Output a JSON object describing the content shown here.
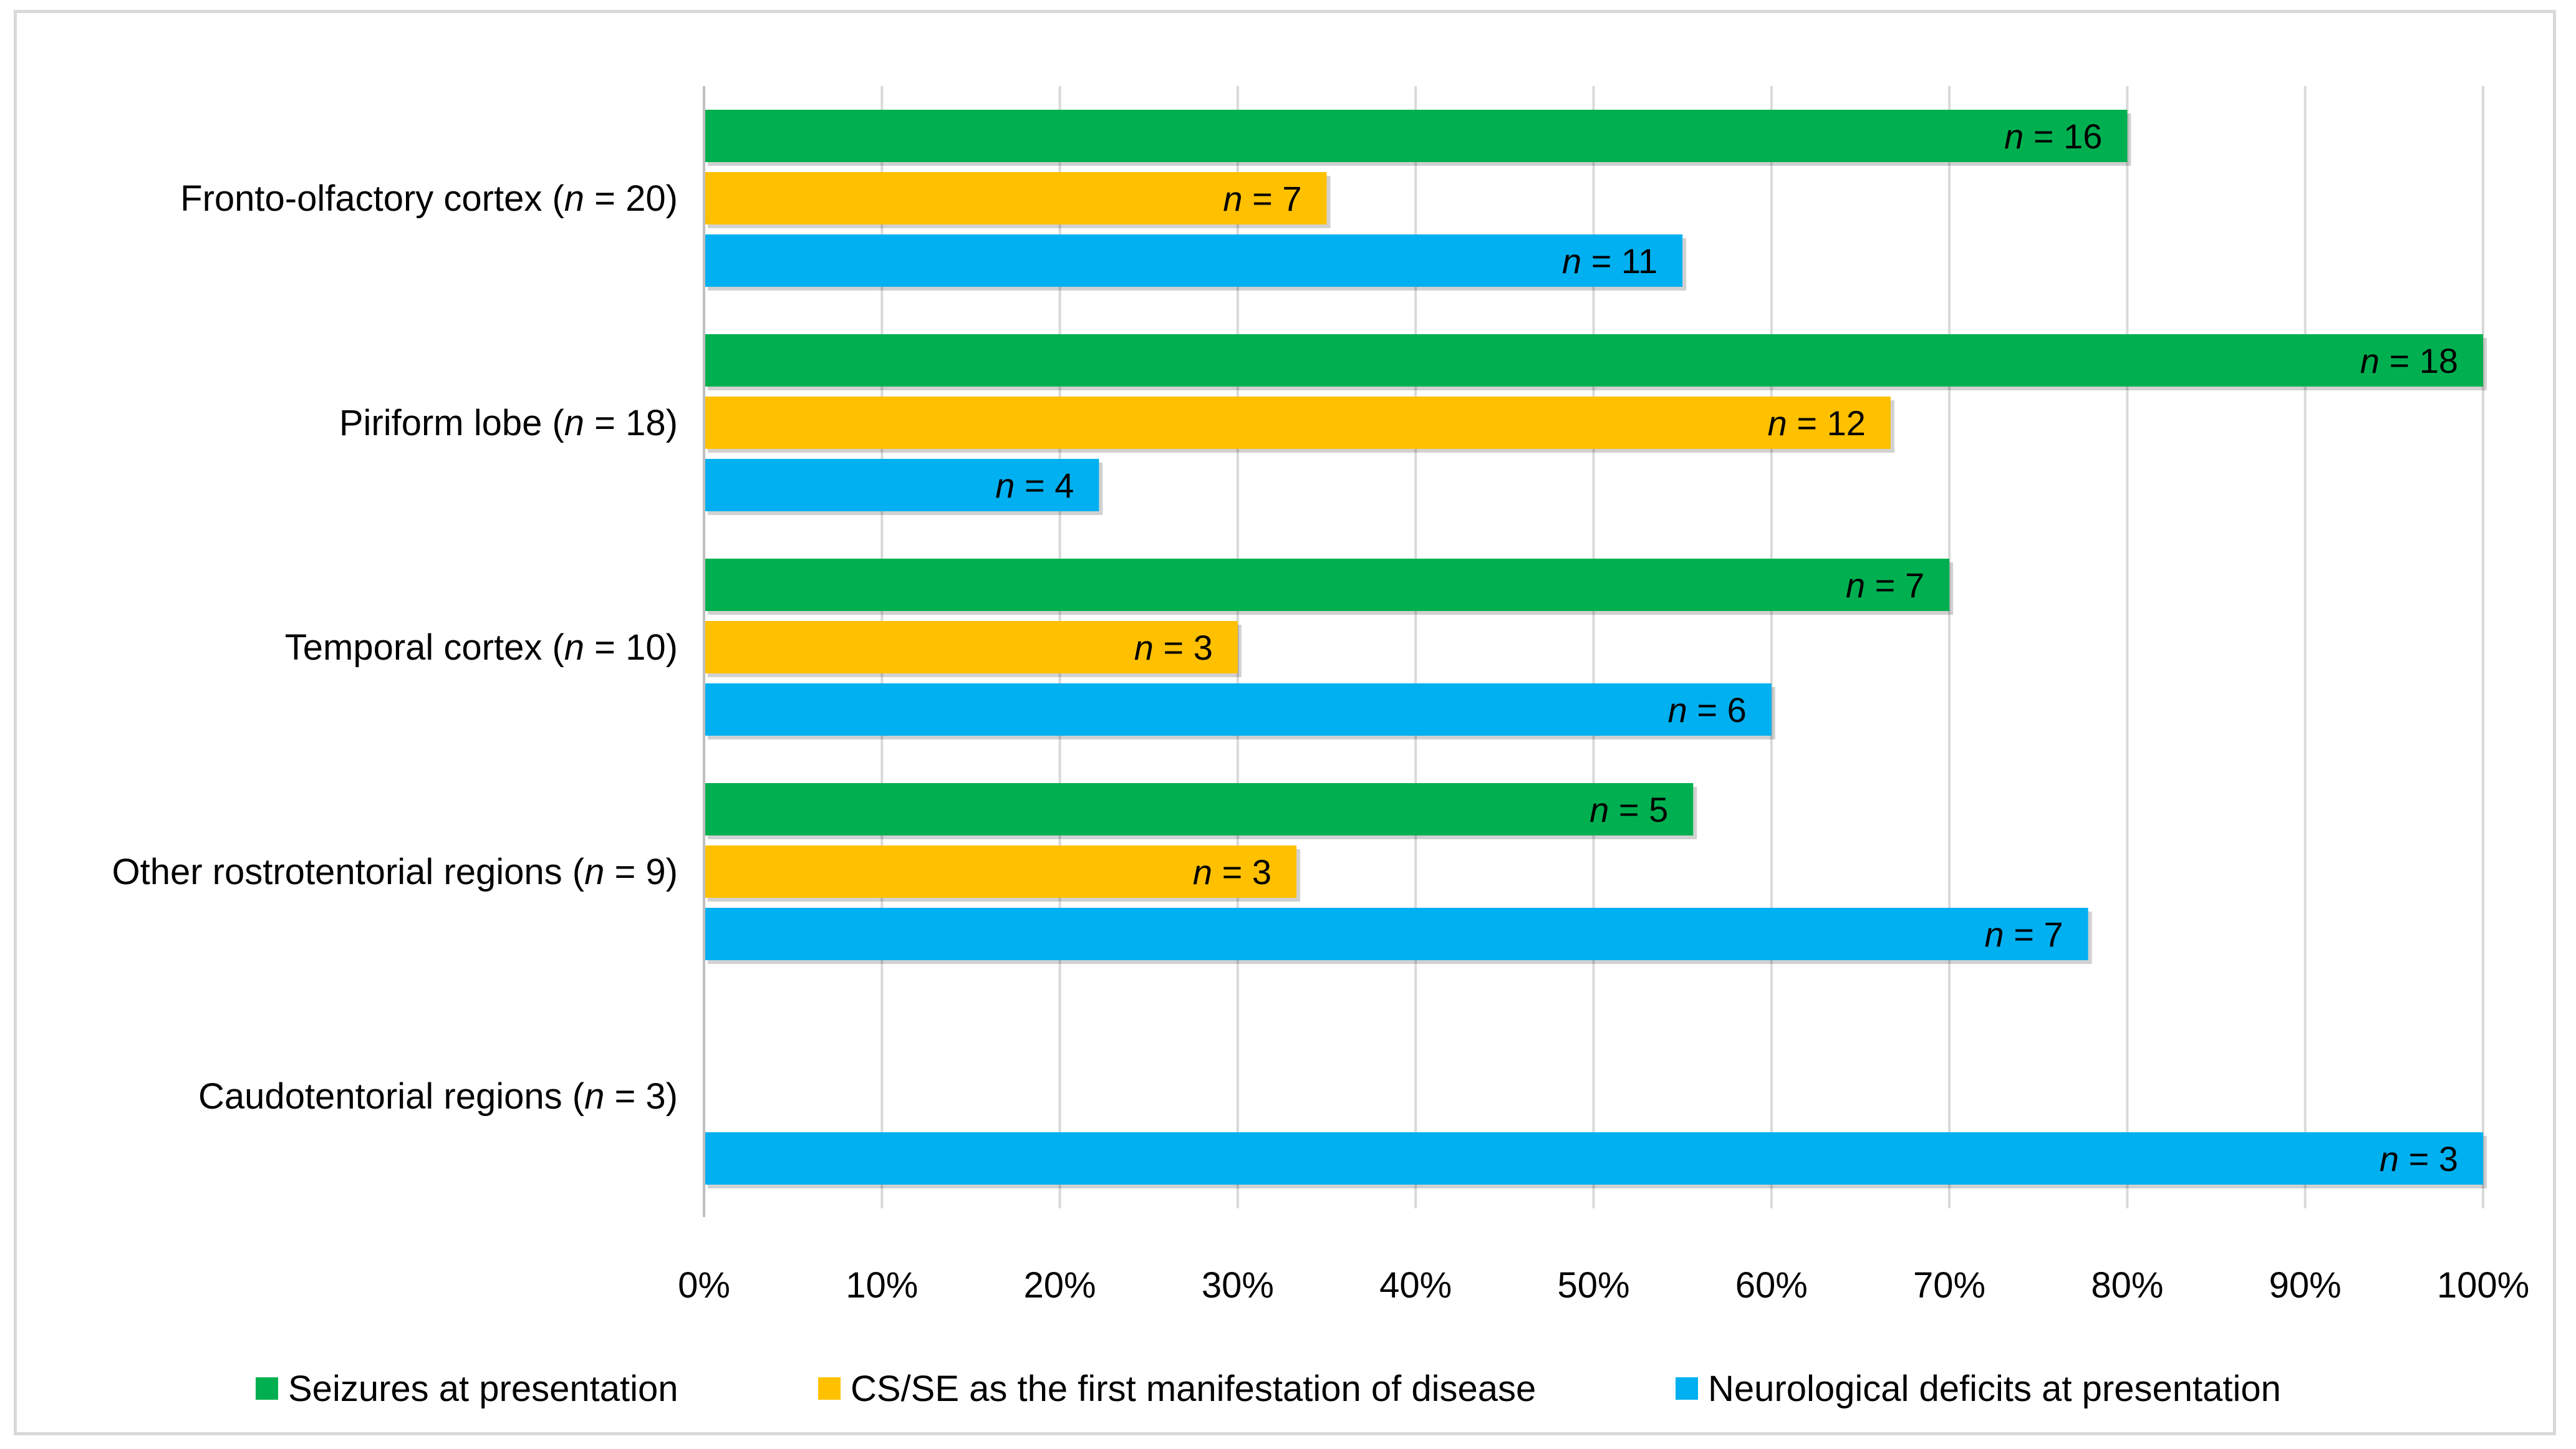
{
  "chart_data": {
    "type": "bar",
    "orientation": "horizontal",
    "title": "",
    "xlabel": "",
    "ylabel": "",
    "xlim": [
      0,
      100
    ],
    "x_tick_labels": [
      "0%",
      "10%",
      "20%",
      "30%",
      "40%",
      "50%",
      "60%",
      "70%",
      "80%",
      "90%",
      "100%"
    ],
    "grid": true,
    "legend_position": "bottom",
    "categories": [
      {
        "name": "Fronto-olfactory cortex",
        "n": "20"
      },
      {
        "name": "Piriform lobe",
        "n": "18"
      },
      {
        "name": "Temporal cortex",
        "n": "10"
      },
      {
        "name": "Other rostrotentorial regions",
        "n": "9"
      },
      {
        "name": "Caudotentorial regions",
        "n": "3"
      }
    ],
    "series": [
      {
        "name": "Seizures at presentation",
        "color": "#00b050",
        "values": [
          80,
          100,
          70,
          55.6,
          null
        ],
        "counts": [
          "16",
          "18",
          "7",
          "5",
          null
        ]
      },
      {
        "name": "CS/SE as the first manifestation of disease",
        "color": "#ffc000",
        "values": [
          35,
          66.7,
          30,
          33.3,
          null
        ],
        "counts": [
          "7",
          "12",
          "3",
          "3",
          null
        ]
      },
      {
        "name": "Neurological deficits at presentation",
        "color": "#00b0f0",
        "values": [
          55,
          22.2,
          60,
          77.8,
          100
        ],
        "counts": [
          "11",
          "4",
          "6",
          "7",
          "3"
        ]
      }
    ]
  }
}
